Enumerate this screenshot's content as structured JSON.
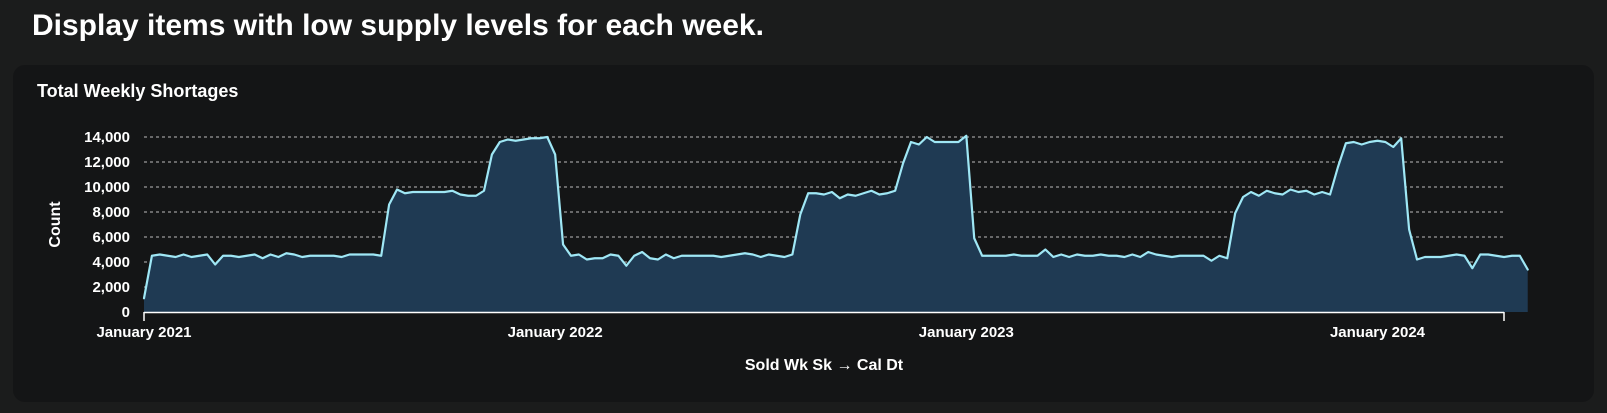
{
  "page": {
    "title": "Display items with low supply levels for each week."
  },
  "card": {
    "title": "Total Weekly Shortages"
  },
  "colors": {
    "background": "#1b1c1c",
    "card_background": "#141516",
    "line": "#9fe7f5",
    "area_fill": "#1f3a53",
    "grid": "#d9d9d9"
  },
  "chart_data": {
    "type": "area",
    "title": "Total Weekly Shortages",
    "xlabel": "Sold Wk Sk → Cal Dt",
    "ylabel": "Count",
    "ylim": [
      0,
      14000
    ],
    "yticks": [
      0,
      2000,
      4000,
      6000,
      8000,
      10000,
      12000,
      14000
    ],
    "ytick_labels": [
      "0",
      "2,000",
      "4,000",
      "6,000",
      "8,000",
      "10,000",
      "12,000",
      "14,000"
    ],
    "xlim": [
      "2021-01-04",
      "2024-04-22"
    ],
    "xticks": [
      "2021-01-04",
      "2022-01-03",
      "2023-01-02",
      "2024-01-01"
    ],
    "xtick_labels": [
      "January 2021",
      "January 2022",
      "January 2023",
      "January 2024"
    ],
    "grid": "horizontal dashed",
    "series": [
      {
        "x_start": "2021-01-04",
        "x_step": "1 week",
        "values": [
          1100,
          4500,
          4600,
          4500,
          4400,
          4600,
          4400,
          4500,
          4600,
          3800,
          4500,
          4500,
          4400,
          4500,
          4600,
          4300,
          4600,
          4400,
          4700,
          4600,
          4400,
          4500,
          4500,
          4500,
          4500,
          4400,
          4600,
          4600,
          4600,
          4600,
          4500,
          8600,
          9800,
          9500,
          9600,
          9600,
          9600,
          9600,
          9600,
          9700,
          9400,
          9300,
          9300,
          9700,
          12600,
          13600,
          13800,
          13700,
          13800,
          13900,
          13900,
          14000,
          12600,
          5400,
          4500,
          4600,
          4200,
          4300,
          4300,
          4600,
          4500,
          3700,
          4500,
          4800,
          4300,
          4200,
          4600,
          4300,
          4500,
          4500,
          4500,
          4500,
          4500,
          4400,
          4500,
          4600,
          4700,
          4600,
          4400,
          4600,
          4500,
          4400,
          4600,
          7800,
          9500,
          9500,
          9400,
          9600,
          9100,
          9400,
          9300,
          9500,
          9700,
          9400,
          9500,
          9700,
          11900,
          13600,
          13400,
          14000,
          13600,
          13600,
          13600,
          13600,
          14100,
          5900,
          4500,
          4500,
          4500,
          4500,
          4600,
          4500,
          4500,
          4500,
          5000,
          4400,
          4600,
          4400,
          4600,
          4500,
          4500,
          4600,
          4500,
          4500,
          4400,
          4600,
          4400,
          4800,
          4600,
          4500,
          4400,
          4500,
          4500,
          4500,
          4500,
          4100,
          4500,
          4300,
          7900,
          9200,
          9600,
          9300,
          9700,
          9500,
          9400,
          9800,
          9600,
          9700,
          9400,
          9600,
          9400,
          11600,
          13500,
          13600,
          13400,
          13600,
          13700,
          13600,
          13200,
          13900,
          6600,
          4200,
          4400,
          4400,
          4400,
          4500,
          4600,
          4500,
          3500,
          4600,
          4600,
          4500,
          4400,
          4500,
          4500,
          3400
        ]
      }
    ]
  }
}
